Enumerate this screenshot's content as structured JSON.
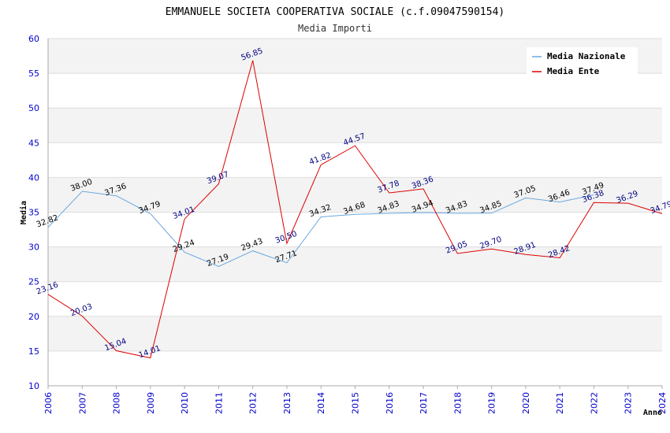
{
  "chart_data": {
    "type": "line",
    "title": "EMMANUELE SOCIETA COOPERATIVA SOCIALE (c.f.09047590154)",
    "subtitle": "Media Importi",
    "xlabel": "Anno",
    "ylabel": "Media",
    "ylim": [
      10,
      60
    ],
    "yticks": [
      "10",
      "15",
      "20",
      "25",
      "30",
      "35",
      "40",
      "45",
      "50",
      "55",
      "60"
    ],
    "categories": [
      "2006",
      "2007",
      "2008",
      "2009",
      "2010",
      "2011",
      "2012",
      "2013",
      "2014",
      "2015",
      "2016",
      "2017",
      "2018",
      "2019",
      "2020",
      "2021",
      "2022",
      "2023",
      "2024"
    ],
    "legend_position": "top-right",
    "series": [
      {
        "name": "Media Nazionale",
        "color": "#6aa8e0",
        "label_color": "#000000",
        "values": [
          32.82,
          38.0,
          37.36,
          34.79,
          29.24,
          27.19,
          29.43,
          27.71,
          34.32,
          34.68,
          34.83,
          34.94,
          34.83,
          34.85,
          37.05,
          36.46,
          37.49,
          null,
          null
        ],
        "labels": [
          "32.82",
          "38.00",
          "37.36",
          "34.79",
          "29.24",
          "27.19",
          "29.43",
          "27.71",
          "34.32",
          "34.68",
          "34.83",
          "34.94",
          "34.83",
          "34.85",
          "37.05",
          "36.46",
          "37.49",
          null,
          null
        ]
      },
      {
        "name": "Media Ente",
        "color": "#dd0000",
        "label_color": "#000080",
        "values": [
          23.16,
          20.03,
          15.04,
          14.01,
          34.01,
          39.07,
          56.85,
          30.5,
          41.82,
          44.57,
          37.78,
          38.36,
          29.05,
          29.7,
          28.91,
          28.42,
          36.38,
          36.29,
          34.79
        ],
        "labels": [
          "23.16",
          "20.03",
          "15.04",
          "14.01",
          "34.01",
          "39.07",
          "56.85",
          "30.50",
          "41.82",
          "44.57",
          "37.78",
          "38.36",
          "29.05",
          "29.70",
          "28.91",
          "28.42",
          "36.38",
          "36.29",
          "34.79"
        ]
      }
    ]
  }
}
